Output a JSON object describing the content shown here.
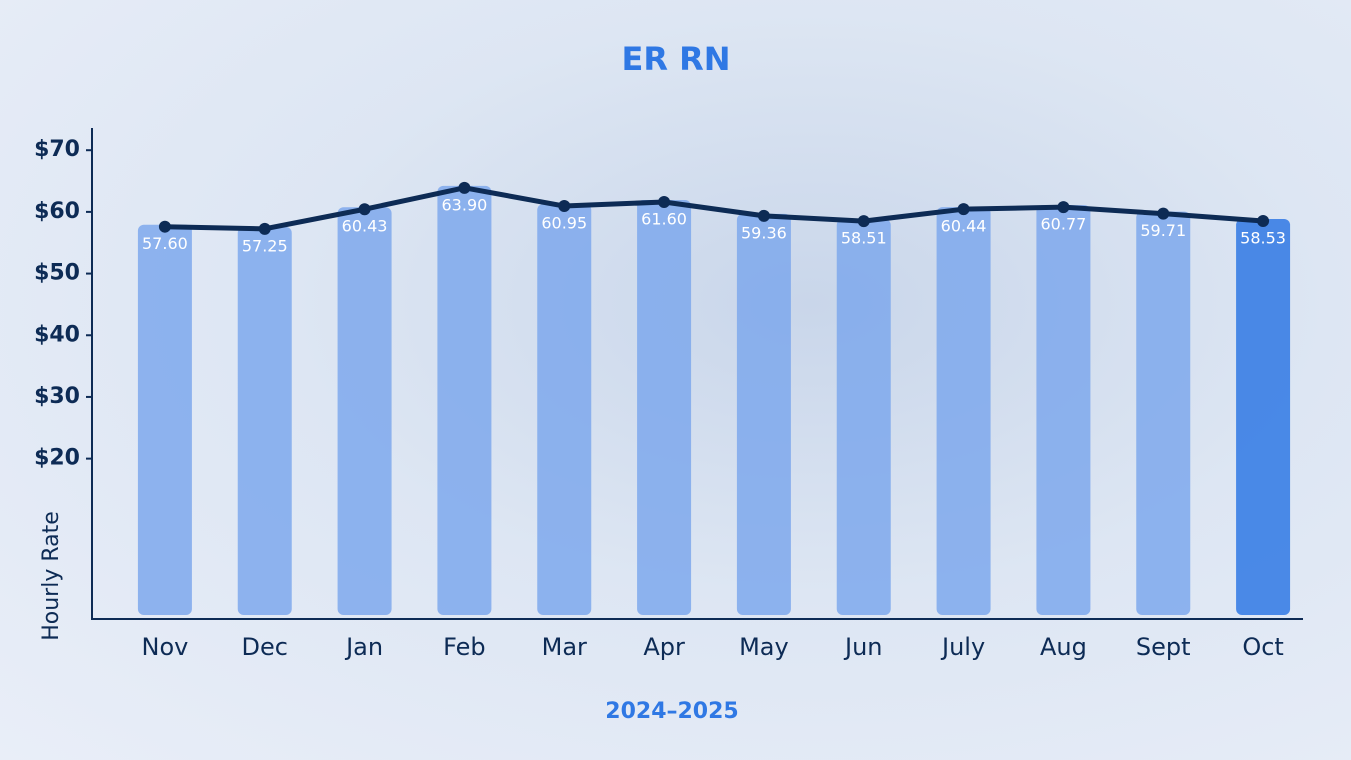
{
  "chart_data": {
    "type": "bar-line",
    "title": "ER RN",
    "x_label": "2024–2025",
    "y_label": "Hourly Rate",
    "categories": [
      "Nov",
      "Dec",
      "Jan",
      "Feb",
      "Mar",
      "Apr",
      "May",
      "Jun",
      "July",
      "Aug",
      "Sept",
      "Oct"
    ],
    "values": [
      57.6,
      57.25,
      60.43,
      63.9,
      60.95,
      61.6,
      59.36,
      58.51,
      60.44,
      60.77,
      59.71,
      58.53
    ],
    "value_labels": [
      "57.60",
      "57.25",
      "60.43",
      "63.90",
      "60.95",
      "61.60",
      "59.36",
      "58.51",
      "60.44",
      "60.77",
      "59.71",
      "58.53"
    ],
    "bar_colors": [
      "#7ea8ec",
      "#7ea8ec",
      "#7ea8ec",
      "#7ea8ec",
      "#7ea8ec",
      "#7ea8ec",
      "#7ea8ec",
      "#7ea8ec",
      "#7ea8ec",
      "#7ea8ec",
      "#7ea8ec",
      "#2f78e4"
    ],
    "line_color": "#0d2b55",
    "ylim": [
      -6,
      73.6
    ],
    "yticks": [
      {
        "value": 20,
        "label": "$20"
      },
      {
        "value": 30,
        "label": "$30"
      },
      {
        "value": 40,
        "label": "$40"
      },
      {
        "value": 50,
        "label": "$50"
      },
      {
        "value": 60,
        "label": "$60"
      },
      {
        "value": 70,
        "label": "$70"
      }
    ]
  }
}
